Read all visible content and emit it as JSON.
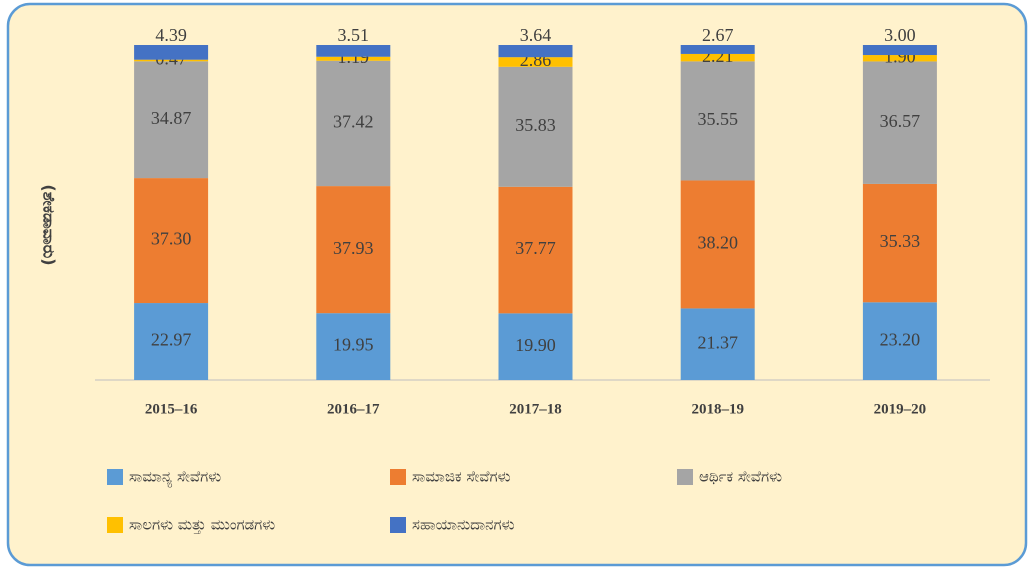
{
  "chart_data": {
    "type": "stacked_bar",
    "y_label": "(ಶೇಕಡಾವಾರು)",
    "categories": [
      "2015–16",
      "2016–17",
      "2017–18",
      "2018–19",
      "2019–20"
    ],
    "series": [
      {
        "name": "ಸಾಮಾನ್ಯ ಸೇವೆಗಳು",
        "color": "#5b9bd5",
        "values": [
          22.97,
          19.95,
          19.9,
          21.37,
          23.2
        ],
        "value_labels": [
          "22.97",
          "19.95",
          "19.90",
          "21.37",
          "23.20"
        ]
      },
      {
        "name": "ಸಾಮಾಜಿಕ ಸೇವೆಗಳು",
        "color": "#ed7d31",
        "values": [
          37.3,
          37.93,
          37.77,
          38.2,
          35.33
        ],
        "value_labels": [
          "37.30",
          "37.93",
          "37.77",
          "38.20",
          "35.33"
        ]
      },
      {
        "name": "ಆರ್ಥಿಕ ಸೇವೆಗಳು",
        "color": "#a5a5a5",
        "values": [
          34.87,
          37.42,
          35.83,
          35.55,
          36.57
        ],
        "value_labels": [
          "34.87",
          "37.42",
          "35.83",
          "35.55",
          "36.57"
        ]
      },
      {
        "name": "ಸಾಲಗಳು ಮತ್ತು ಮುಂಗಡಗಳು",
        "color": "#ffc000",
        "values": [
          0.47,
          1.19,
          2.86,
          2.21,
          1.9
        ],
        "value_labels": [
          "0.47",
          "1.19",
          "2.86",
          "2.21",
          "1.90"
        ]
      },
      {
        "name": "ಸಹಾಯಾನುದಾನಗಳು",
        "color": "#4472c4",
        "values": [
          4.39,
          3.51,
          3.64,
          2.67,
          3.0
        ],
        "value_labels": [
          "4.39",
          "3.51",
          "3.64",
          "2.67",
          "3.00"
        ]
      }
    ],
    "ylim": [
      0,
      100
    ]
  }
}
